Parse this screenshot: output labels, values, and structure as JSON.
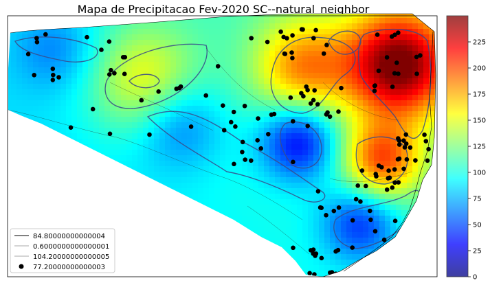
{
  "chart_data": {
    "type": "heatmap",
    "title": "Mapa de Precipitacao Fev-2020  SC--natural_neighbor",
    "colormap": "jet",
    "colorbar": {
      "range": [
        0,
        250
      ],
      "ticks": [
        0,
        25,
        50,
        75,
        100,
        125,
        150,
        175,
        200,
        225
      ],
      "tick_labels": [
        "0",
        "25",
        "50",
        "75",
        "100",
        "125",
        "150",
        "175",
        "200",
        "225"
      ]
    },
    "legend": {
      "placement": "lower-left",
      "entries": [
        {
          "label": "84.80000000000004",
          "style": "line",
          "color": "#000000"
        },
        {
          "label": "0.6000000000000001",
          "style": "line",
          "color": "#555555"
        },
        {
          "label": "104.20000000000005",
          "style": "line",
          "color": "#555555"
        },
        {
          "label": "77.20000000000003",
          "style": "marker",
          "color": "#000000"
        }
      ]
    },
    "field_peaks": [
      {
        "value": 155,
        "label": "west high"
      },
      {
        "value": 175,
        "label": "north-central high"
      },
      {
        "value": 240,
        "label": "northeast high"
      },
      {
        "value": 190,
        "label": "eastern high"
      },
      {
        "value": 25,
        "label": "central low"
      },
      {
        "value": 40,
        "label": "southern low"
      },
      {
        "value": 60,
        "label": "west-central low"
      },
      {
        "value": 70,
        "label": "far west low"
      }
    ],
    "station_count": 160,
    "grid": false
  }
}
